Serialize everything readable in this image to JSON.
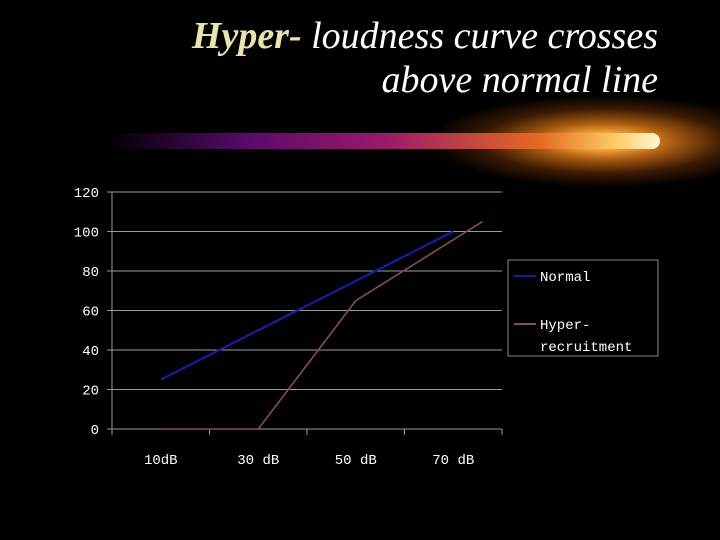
{
  "slide": {
    "title_emphasis": "Hyper-",
    "title_rest_line1": " loudness curve crosses",
    "title_line2": "above normal line"
  },
  "chart_data": {
    "type": "line",
    "title": "",
    "xlabel": "",
    "ylabel": "",
    "categories": [
      "10dB",
      "30 dB",
      "50 dB",
      "70 dB"
    ],
    "ylim": [
      0,
      120
    ],
    "yticks": [
      "0",
      "20",
      "40",
      "60",
      "80",
      "100",
      "120"
    ],
    "grid": true,
    "legend_position": "right",
    "series": [
      {
        "name": "Normal",
        "color": "#1a1aa6",
        "x": [
          0,
          3
        ],
        "values": [
          25,
          100
        ]
      },
      {
        "name": "Hyper-recruitment",
        "label_lines": [
          "Hyper-",
          "recruitment"
        ],
        "color": "#8a4a5a",
        "x": [
          0,
          1,
          2,
          3.3
        ],
        "values": [
          0,
          0,
          65,
          105
        ]
      }
    ]
  }
}
